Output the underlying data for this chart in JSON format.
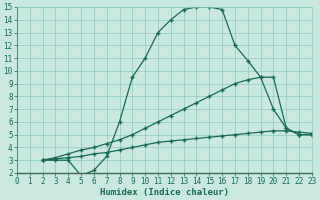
{
  "xlabel": "Humidex (Indice chaleur)",
  "bg_color": "#c8e8e0",
  "grid_color": "#90c8be",
  "line_color": "#1a6858",
  "xlim": [
    0,
    23
  ],
  "ylim": [
    2,
    15
  ],
  "xticks": [
    0,
    1,
    2,
    3,
    4,
    5,
    6,
    7,
    8,
    9,
    10,
    11,
    12,
    13,
    14,
    15,
    16,
    17,
    18,
    19,
    20,
    21,
    22,
    23
  ],
  "yticks": [
    2,
    3,
    4,
    5,
    6,
    7,
    8,
    9,
    10,
    11,
    12,
    13,
    14,
    15
  ],
  "line1_x": [
    2,
    3,
    4,
    5,
    6,
    7,
    8,
    9,
    10,
    11,
    12,
    13,
    14,
    15,
    16,
    17,
    18,
    19,
    20,
    21,
    22,
    23
  ],
  "line1_y": [
    3.0,
    3.0,
    3.0,
    1.8,
    2.2,
    3.3,
    6.0,
    9.5,
    11.0,
    13.0,
    14.0,
    14.8,
    15.0,
    15.0,
    14.8,
    12.0,
    10.8,
    9.5,
    7.0,
    5.5,
    5.0,
    5.0
  ],
  "line2_x": [
    2,
    3,
    4,
    5,
    6,
    7,
    8,
    9,
    10,
    11,
    12,
    13,
    14,
    15,
    16,
    17,
    18,
    19,
    20,
    21,
    22,
    23
  ],
  "line2_y": [
    3.0,
    3.2,
    3.5,
    3.8,
    4.0,
    4.3,
    4.6,
    5.0,
    5.5,
    6.0,
    6.5,
    7.0,
    7.5,
    8.0,
    8.5,
    9.0,
    9.3,
    9.5,
    9.5,
    5.5,
    5.0,
    5.0
  ],
  "line3_x": [
    2,
    3,
    4,
    5,
    6,
    7,
    8,
    9,
    10,
    11,
    12,
    13,
    14,
    15,
    16,
    17,
    18,
    19,
    20,
    21,
    22,
    23
  ],
  "line3_y": [
    3.0,
    3.1,
    3.2,
    3.3,
    3.5,
    3.6,
    3.8,
    4.0,
    4.2,
    4.4,
    4.5,
    4.6,
    4.7,
    4.8,
    4.9,
    5.0,
    5.1,
    5.2,
    5.3,
    5.3,
    5.2,
    5.1
  ],
  "tick_fontsize": 5.5,
  "xlabel_fontsize": 6.5
}
